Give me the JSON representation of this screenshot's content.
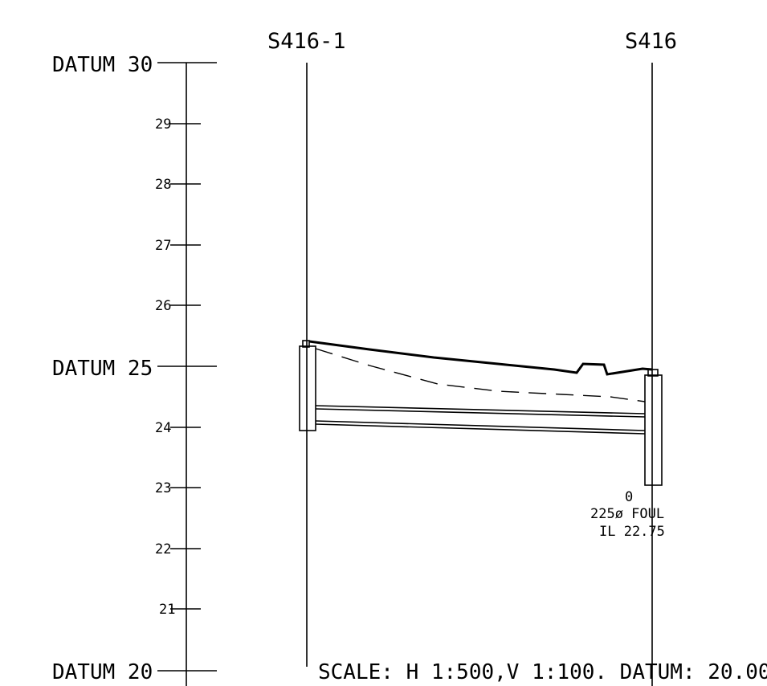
{
  "stations": {
    "left": "S416-1",
    "right": "S416"
  },
  "datum_labels": {
    "d30": "DATUM 30",
    "d25": "DATUM 25",
    "d20": "DATUM 20"
  },
  "tick_labels": {
    "t29": "29",
    "t28": "28",
    "t27": "27",
    "t26": "26",
    "t24": "24",
    "t23": "23",
    "t22": "22",
    "t21": "21"
  },
  "pipe_annotation": {
    "pipe_marker": "0",
    "line1": "225ø FOUL",
    "line2": "IL 22.75"
  },
  "scale_note": "SCALE: H 1:500,V 1:100. DATUM: 20.000"
}
